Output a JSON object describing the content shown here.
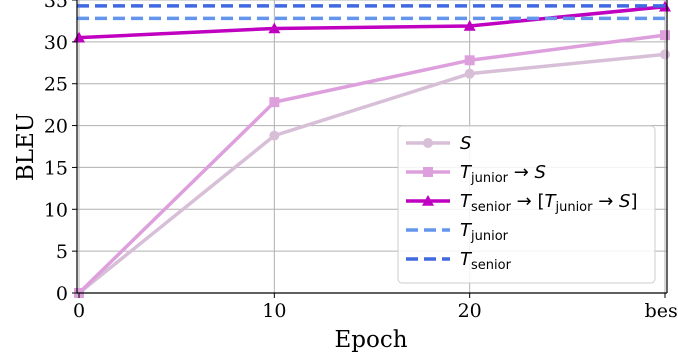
{
  "chart_data": {
    "type": "line",
    "categories": [
      "0",
      "10",
      "20",
      "best"
    ],
    "xlabel": "Epoch",
    "ylabel": "BLEU",
    "ylim": [
      0,
      35
    ],
    "yticks": [
      "0",
      "5",
      "10",
      "15",
      "20",
      "25",
      "30",
      "35"
    ],
    "grid": true,
    "legend_position": "bottom-right",
    "series": [
      {
        "key": "s",
        "legend": {
          "main": "S",
          "parts": [
            {
              "t": "S",
              "italic": true
            }
          ]
        },
        "values": [
          0,
          18.8,
          26.2,
          28.5
        ],
        "color": "#d8bfd8",
        "marker": "circle",
        "style": "solid"
      },
      {
        "key": "tj_s",
        "legend": {
          "main": "T_junior → S",
          "parts": [
            {
              "t": "T",
              "italic": true
            },
            {
              "t": "junior",
              "sub": true
            },
            {
              "t": " → "
            },
            {
              "t": "S",
              "italic": true
            }
          ]
        },
        "values": [
          0,
          22.8,
          27.8,
          30.8
        ],
        "color": "#dda0dd",
        "marker": "square",
        "style": "solid"
      },
      {
        "key": "ts_tj_s",
        "legend": {
          "main": "T_senior → [T_junior → S]",
          "parts": [
            {
              "t": "T",
              "italic": true
            },
            {
              "t": "senior",
              "sub": true
            },
            {
              "t": " → ["
            },
            {
              "t": "T",
              "italic": true
            },
            {
              "t": "junior",
              "sub": true
            },
            {
              "t": " → "
            },
            {
              "t": "S",
              "italic": true
            },
            {
              "t": "]"
            }
          ]
        },
        "values": [
          30.5,
          31.6,
          31.9,
          34.2
        ],
        "color": "#c000c0",
        "marker": "triangle",
        "style": "solid"
      },
      {
        "key": "tj",
        "legend": {
          "main": "T_junior",
          "parts": [
            {
              "t": "T",
              "italic": true
            },
            {
              "t": "junior",
              "sub": true
            }
          ]
        },
        "constant": 32.8,
        "color": "#6495ed",
        "marker": "none",
        "style": "dashed"
      },
      {
        "key": "ts",
        "legend": {
          "main": "T_senior",
          "parts": [
            {
              "t": "T",
              "italic": true
            },
            {
              "t": "senior",
              "sub": true
            }
          ]
        },
        "constant": 34.3,
        "color": "#4169e1",
        "marker": "none",
        "style": "dashed"
      }
    ]
  }
}
